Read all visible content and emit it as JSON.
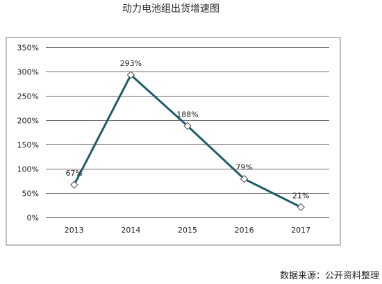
{
  "chart_data": {
    "type": "line",
    "title": "动力电池组出货增速图",
    "categories": [
      "2013",
      "2014",
      "2015",
      "2016",
      "2017"
    ],
    "series": [
      {
        "values": [
          67,
          293,
          188,
          79,
          21
        ],
        "data_labels": [
          "67%",
          "293%",
          "188%",
          "79%",
          "21%"
        ]
      }
    ],
    "ylim": [
      0,
      350
    ],
    "yticks": [
      0,
      50,
      100,
      150,
      200,
      250,
      300,
      350
    ],
    "ytick_labels": [
      "0%",
      "50%",
      "100%",
      "150%",
      "200%",
      "250%",
      "300%",
      "350%"
    ],
    "grid": true,
    "legend": "none",
    "xlabel": "",
    "ylabel": ""
  },
  "source_note": "数据来源：公开资料整理",
  "colors": {
    "line": "#1f5c6b",
    "marker_stroke": "#4a4a4a",
    "grid": "#6d6d6d",
    "frame": "#7f7f7f"
  }
}
